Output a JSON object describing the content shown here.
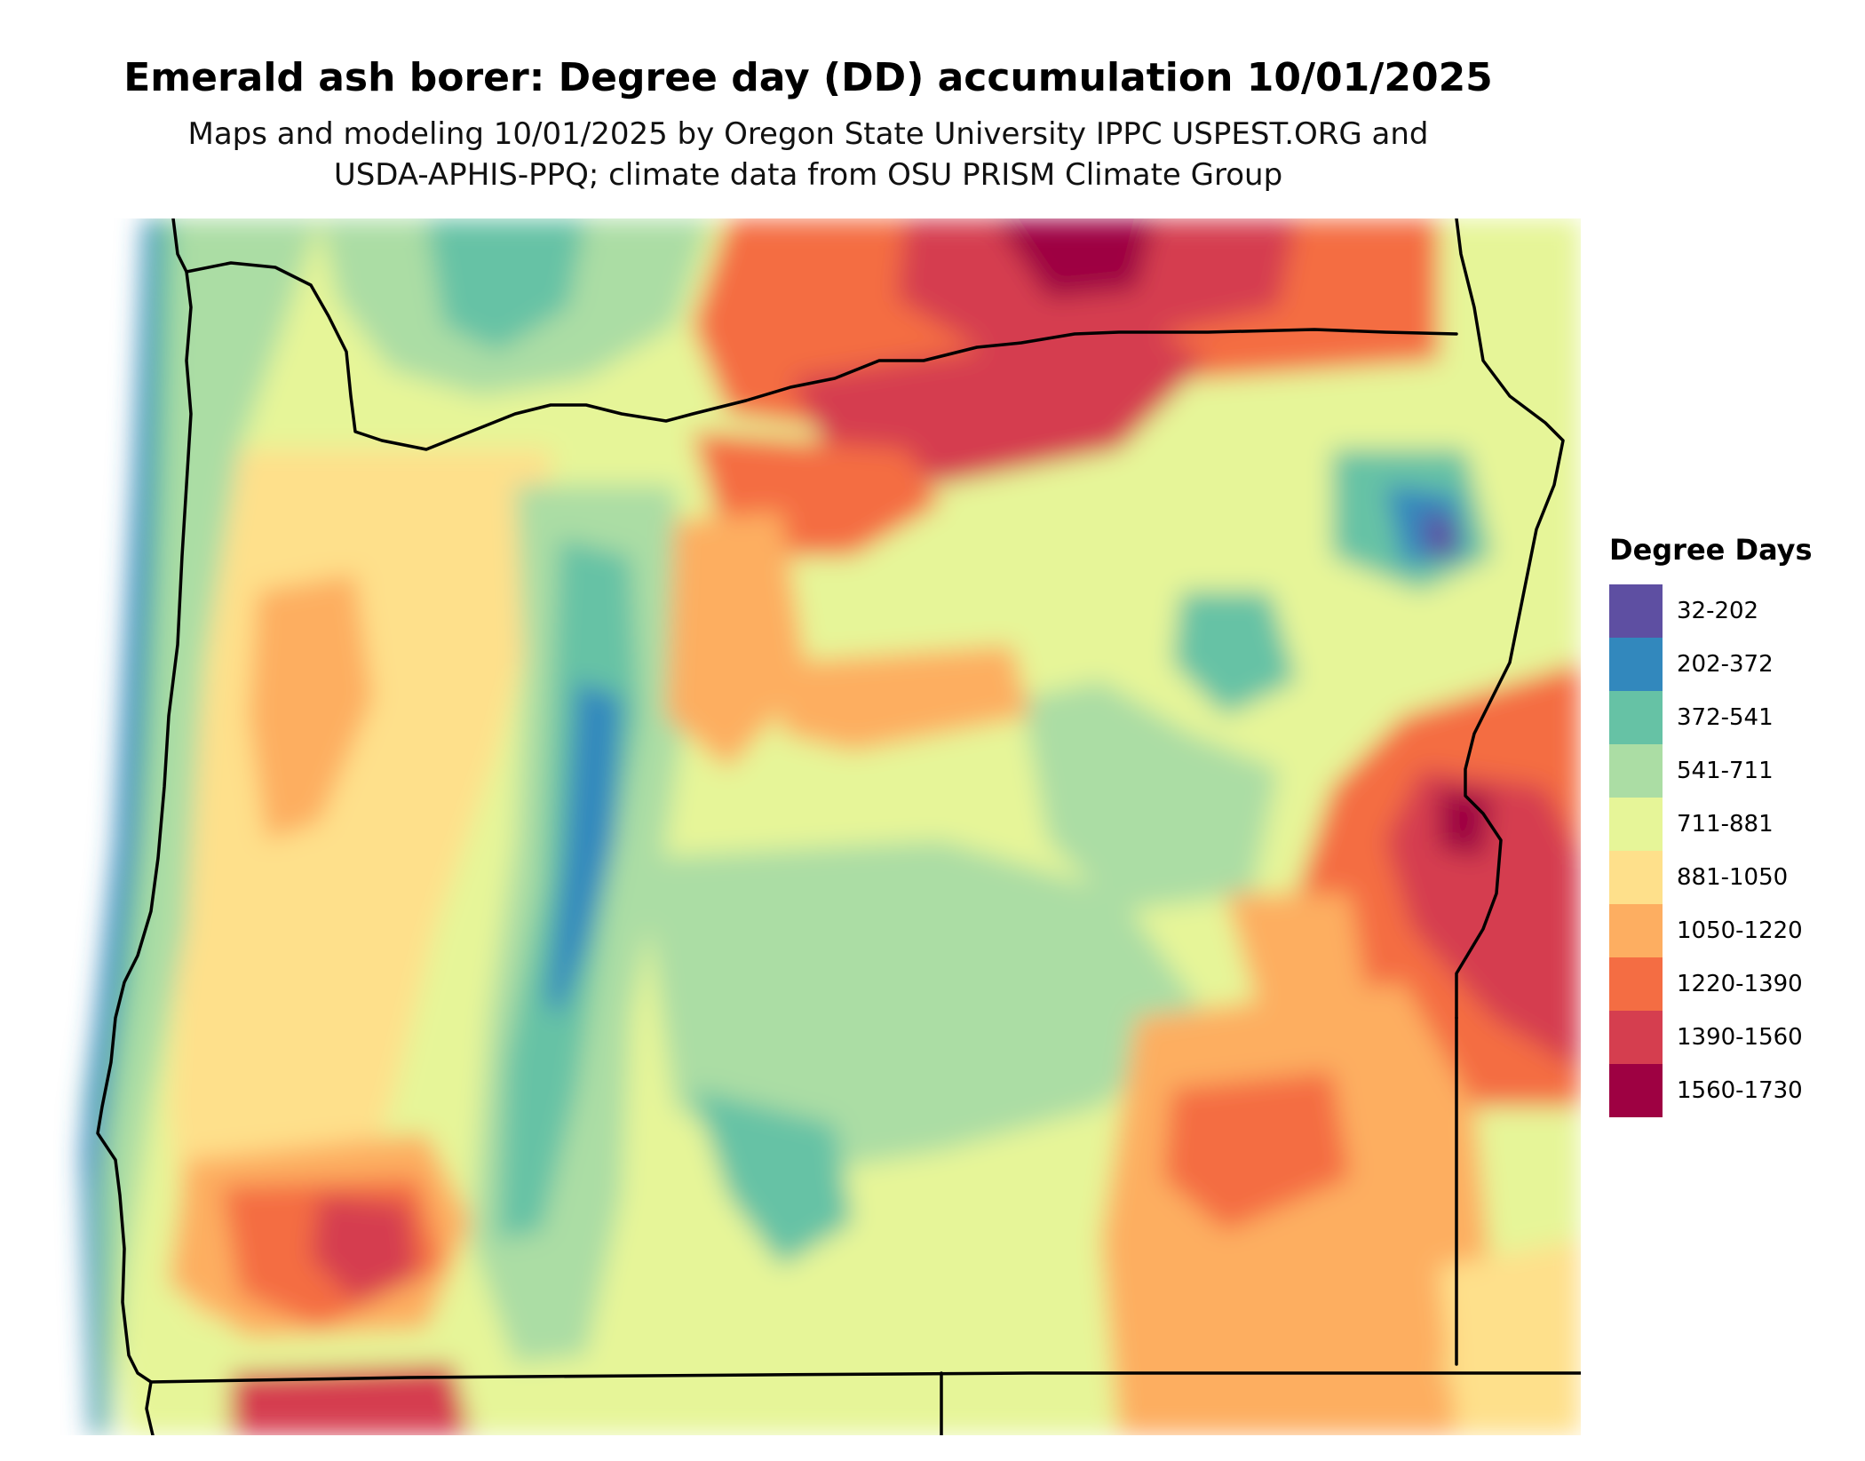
{
  "title": "Emerald ash borer: Degree day (DD) accumulation 10/01/2025",
  "subtitle_line1": "Maps and modeling 10/01/2025 by Oregon State University IPPC USPEST.ORG and",
  "subtitle_line2": "USDA-APHIS-PPQ; climate data from OSU PRISM Climate Group",
  "legend": {
    "title": "Degree Days",
    "items": [
      {
        "label": "32-202",
        "color": "#5e4fa2"
      },
      {
        "label": "202-372",
        "color": "#3288bd"
      },
      {
        "label": "372-541",
        "color": "#66c2a5"
      },
      {
        "label": "541-711",
        "color": "#abdda4"
      },
      {
        "label": "711-881",
        "color": "#e6f598"
      },
      {
        "label": "881-1050",
        "color": "#fee08b"
      },
      {
        "label": "1050-1220",
        "color": "#fdae61"
      },
      {
        "label": "1220-1390",
        "color": "#f46d43"
      },
      {
        "label": "1390-1560",
        "color": "#d53e4f"
      },
      {
        "label": "1560-1730",
        "color": "#9e0142"
      }
    ]
  }
}
